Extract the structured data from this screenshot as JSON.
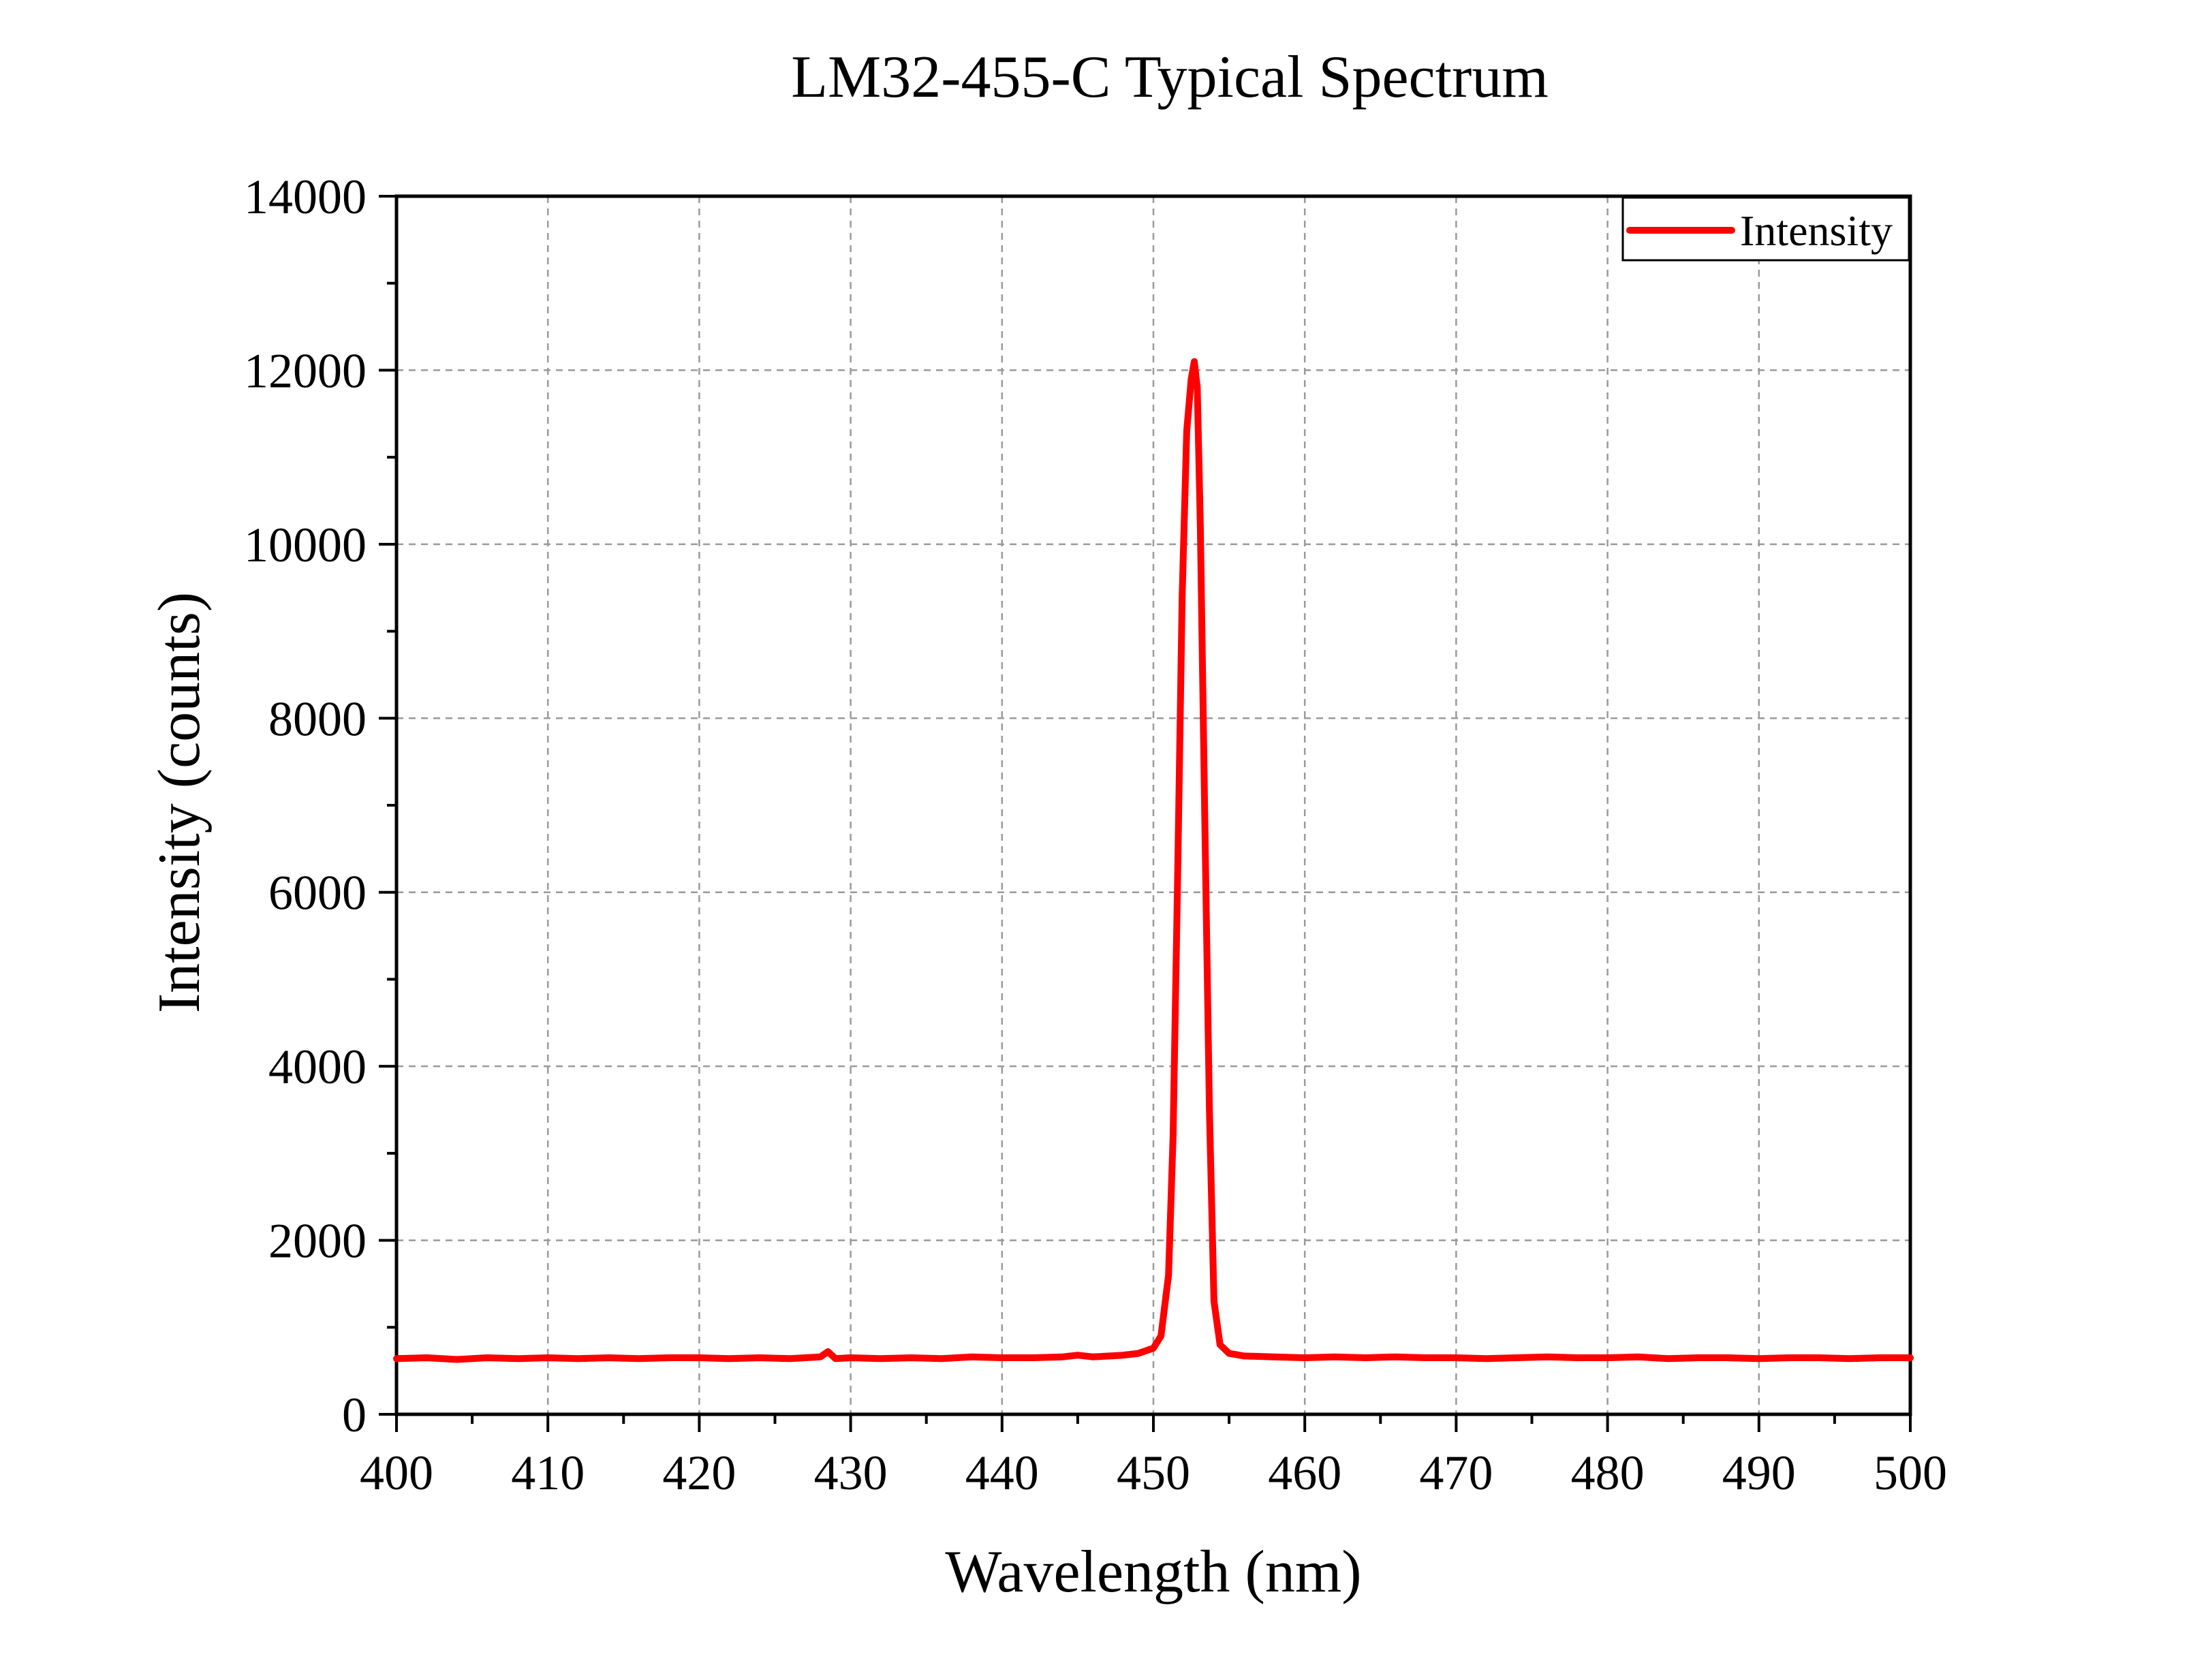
{
  "chart_data": {
    "type": "line",
    "title": "LM32-455-C Typical Spectrum",
    "xlabel": "Wavelength (nm)",
    "ylabel": "Intensity (counts)",
    "xlim": [
      400,
      500
    ],
    "ylim": [
      0,
      14000
    ],
    "x_ticks": [
      400,
      410,
      420,
      430,
      440,
      450,
      460,
      470,
      480,
      490,
      500
    ],
    "y_ticks": [
      0,
      2000,
      4000,
      6000,
      8000,
      10000,
      12000,
      14000
    ],
    "grid": true,
    "legend_position": "top-right",
    "series": [
      {
        "name": "Intensity",
        "color": "#ff0000",
        "x": [
          400,
          402,
          404,
          406,
          408,
          410,
          412,
          414,
          416,
          418,
          420,
          422,
          424,
          426,
          427,
          428,
          428.5,
          429,
          430,
          432,
          434,
          436,
          438,
          440,
          442,
          444,
          445,
          446,
          448,
          449,
          450,
          450.5,
          451,
          451.3,
          451.6,
          451.9,
          452.2,
          452.5,
          452.7,
          452.9,
          453.1,
          453.4,
          453.7,
          454,
          454.4,
          455,
          456,
          458,
          460,
          462,
          464,
          466,
          468,
          470,
          472,
          474,
          476,
          478,
          480,
          482,
          484,
          486,
          488,
          490,
          492,
          494,
          496,
          498,
          500
        ],
        "y": [
          640,
          650,
          630,
          650,
          640,
          650,
          640,
          650,
          640,
          650,
          650,
          640,
          650,
          640,
          650,
          660,
          720,
          640,
          650,
          640,
          650,
          640,
          660,
          650,
          650,
          660,
          680,
          660,
          680,
          700,
          760,
          900,
          1600,
          3200,
          6200,
          9400,
          11300,
          11900,
          12100,
          11800,
          10200,
          6800,
          3500,
          1300,
          800,
          700,
          670,
          660,
          650,
          660,
          650,
          660,
          650,
          650,
          640,
          650,
          660,
          650,
          650,
          660,
          640,
          650,
          650,
          640,
          650,
          650,
          640,
          650,
          650
        ]
      }
    ]
  }
}
